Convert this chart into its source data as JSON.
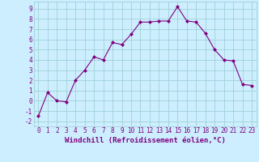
{
  "x": [
    0,
    1,
    2,
    3,
    4,
    5,
    6,
    7,
    8,
    9,
    10,
    11,
    12,
    13,
    14,
    15,
    16,
    17,
    18,
    19,
    20,
    21,
    22,
    23
  ],
  "y": [
    -1.5,
    0.8,
    0.0,
    -0.1,
    2.0,
    3.0,
    4.3,
    4.0,
    5.7,
    5.5,
    6.5,
    7.7,
    7.7,
    7.8,
    7.8,
    9.2,
    7.8,
    7.7,
    6.6,
    5.0,
    4.0,
    3.9,
    1.6,
    1.5
  ],
  "line_color": "#800080",
  "marker": "D",
  "marker_size": 2,
  "bg_color": "#cceeff",
  "grid_color": "#99cccc",
  "xlabel": "Windchill (Refroidissement éolien,°C)",
  "xlim": [
    -0.5,
    23.5
  ],
  "ylim": [
    -2.5,
    9.7
  ],
  "yticks": [
    -2,
    -1,
    0,
    1,
    2,
    3,
    4,
    5,
    6,
    7,
    8,
    9
  ],
  "xticks": [
    0,
    1,
    2,
    3,
    4,
    5,
    6,
    7,
    8,
    9,
    10,
    11,
    12,
    13,
    14,
    15,
    16,
    17,
    18,
    19,
    20,
    21,
    22,
    23
  ],
  "tick_fontsize": 5.5,
  "xlabel_fontsize": 6.5,
  "line_width": 0.8
}
